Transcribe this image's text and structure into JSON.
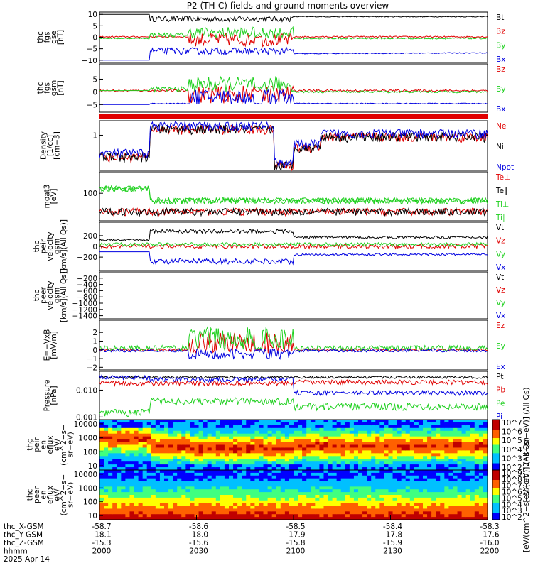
{
  "title": "P2 (TH-C) fields and ground moments overview",
  "date_label": "2025 Apr 14",
  "time_axis": {
    "row_labels": [
      "thc_X-GSM",
      "thc_Y-GSM",
      "thc_Z-GSM",
      "hhmm"
    ],
    "columns": [
      {
        "x": "-58.7",
        "y": "-18.1",
        "z": "-15.3",
        "hhmm": "2000"
      },
      {
        "x": "-58.6",
        "y": "-18.0",
        "z": "-15.6",
        "hhmm": "2030"
      },
      {
        "x": "-58.5",
        "y": "-17.9",
        "z": "-15.8",
        "hhmm": "2100"
      },
      {
        "x": "-58.4",
        "y": "-17.8",
        "z": "-15.9",
        "hhmm": "2130"
      },
      {
        "x": "-58.3",
        "y": "-17.6",
        "z": "-16.0",
        "hhmm": "2200"
      }
    ]
  },
  "colors": {
    "black": "#000000",
    "red": "#e00000",
    "green": "#20d020",
    "blue": "#0000e0"
  },
  "chart_data": [
    {
      "type": "line",
      "panel": "fgs_gse",
      "ylabel": [
        "thc",
        "fgs",
        "gse",
        "[nT]"
      ],
      "yticks": [
        {
          "v": 10,
          "t": "10"
        },
        {
          "v": 5,
          "t": "5"
        },
        {
          "v": 0,
          "t": "0"
        },
        {
          "v": -5,
          "t": "−5"
        },
        {
          "v": -10,
          "t": "−10"
        }
      ],
      "ylim": [
        -11,
        11
      ],
      "scale": "linear",
      "series": [
        {
          "name": "Bt",
          "color": "black"
        },
        {
          "name": "Bz",
          "color": "red"
        },
        {
          "name": "By",
          "color": "green"
        },
        {
          "name": "Bx",
          "color": "blue"
        }
      ]
    },
    {
      "type": "line",
      "panel": "fgs_gsm",
      "ylabel": [
        "thc",
        "fgs",
        "gsm",
        "[nT]"
      ],
      "yticks": [
        {
          "v": 5,
          "t": "5"
        },
        {
          "v": 0,
          "t": "0"
        },
        {
          "v": -5,
          "t": "−5"
        }
      ],
      "ylim": [
        -8,
        11
      ],
      "scale": "linear",
      "series": [
        {
          "name": "Bz",
          "color": "red"
        },
        {
          "name": "By",
          "color": "green"
        },
        {
          "name": "Bx",
          "color": "blue"
        }
      ]
    },
    {
      "type": "bar",
      "panel": "eclipse_bar",
      "color": "red"
    },
    {
      "type": "line",
      "panel": "density",
      "ylabel": [
        "Density",
        "[1/cc]",
        "[cm−3]"
      ],
      "yticks": [
        {
          "v": 1,
          "t": "1"
        }
      ],
      "ylim": [
        0.07,
        3
      ],
      "scale": "log",
      "series": [
        {
          "name": "Ne",
          "color": "red"
        },
        {
          "name": "Ni",
          "color": "black"
        },
        {
          "name": "Npot",
          "color": "blue"
        }
      ]
    },
    {
      "type": "line",
      "panel": "temperature",
      "ylabel": [
        "moat3",
        "[eV]"
      ],
      "yticks": [
        {
          "v": 100,
          "t": "100"
        }
      ],
      "ylim": [
        10,
        600
      ],
      "scale": "log",
      "series": [
        {
          "name": "Te⊥",
          "color": "red"
        },
        {
          "name": "Te∥",
          "color": "black"
        },
        {
          "name": "Ti⊥",
          "color": "green"
        },
        {
          "name": "Ti∥",
          "color": "green"
        }
      ]
    },
    {
      "type": "line",
      "panel": "peir_velocity",
      "ylabel": [
        "thc",
        "peir",
        "velocity",
        "gsm",
        "[km/s](All Qs)]"
      ],
      "yticks": [
        {
          "v": 200,
          "t": "200"
        },
        {
          "v": 0,
          "t": "0"
        },
        {
          "v": -200,
          "t": "−200"
        }
      ],
      "ylim": [
        -450,
        450
      ],
      "scale": "linear",
      "series": [
        {
          "name": "Vt",
          "color": "black"
        },
        {
          "name": "Vz",
          "color": "red"
        },
        {
          "name": "Vy",
          "color": "green"
        },
        {
          "name": "Vx",
          "color": "blue"
        }
      ]
    },
    {
      "type": "line",
      "panel": "peer_velocity",
      "ylabel": [
        "thc",
        "peer",
        "velocity",
        "gsm",
        "[km/s](All Qs)]"
      ],
      "yticks": [
        {
          "v": -200,
          "t": "−200"
        },
        {
          "v": -400,
          "t": "−400"
        },
        {
          "v": -600,
          "t": "−600"
        },
        {
          "v": -800,
          "t": "−800"
        },
        {
          "v": -1000,
          "t": "−1000"
        },
        {
          "v": -1200,
          "t": "−1200"
        },
        {
          "v": -1400,
          "t": "−1400"
        }
      ],
      "ylim": [
        -1500,
        0
      ],
      "scale": "linear",
      "series": [
        {
          "name": "Vt",
          "color": "black"
        },
        {
          "name": "Vz",
          "color": "red"
        },
        {
          "name": "Vy",
          "color": "green"
        },
        {
          "name": "Vx",
          "color": "blue"
        }
      ]
    },
    {
      "type": "line",
      "panel": "efield",
      "ylabel": [
        "E=−VxB",
        "[mV/m]"
      ],
      "yticks": [
        {
          "v": 2,
          "t": "2"
        },
        {
          "v": 1,
          "t": "1"
        },
        {
          "v": 0,
          "t": "0"
        },
        {
          "v": -1,
          "t": "−1"
        },
        {
          "v": -2,
          "t": "−2"
        }
      ],
      "ylim": [
        -2.3,
        3.4
      ],
      "scale": "linear",
      "series": [
        {
          "name": "Ez",
          "color": "red"
        },
        {
          "name": "Ey",
          "color": "green"
        },
        {
          "name": "Ex",
          "color": "blue"
        }
      ]
    },
    {
      "type": "line",
      "panel": "pressure",
      "ylabel": [
        "Pressure",
        "[nPa]"
      ],
      "yticks": [
        {
          "v": 0.01,
          "t": "0.010"
        },
        {
          "v": 0.001,
          "t": "0.001"
        }
      ],
      "ylim": [
        0.0008,
        0.05
      ],
      "scale": "log",
      "series": [
        {
          "name": "Pt",
          "color": "black"
        },
        {
          "name": "Pb",
          "color": "red"
        },
        {
          "name": "Pe",
          "color": "green"
        },
        {
          "name": "Pi",
          "color": "blue"
        }
      ]
    },
    {
      "type": "heatmap",
      "panel": "peir_spectrogram",
      "ylabel": [
        "thc",
        "peir",
        "en",
        "eflux",
        "eV/",
        "(cm^2−s−",
        "sr−eV)"
      ],
      "yticks": [
        {
          "v": 10000,
          "t": "10000"
        },
        {
          "v": 1000,
          "t": "1000"
        },
        {
          "v": 100,
          "t": "100"
        },
        {
          "v": 10,
          "t": "10"
        }
      ],
      "ylim": [
        5,
        20000
      ],
      "scale": "log",
      "colorbar": {
        "ticks": [
          "10^7",
          "10^6",
          "10^5",
          "10^4",
          "10^3",
          "10^2"
        ],
        "label": "[eV/(cm^2−s−sr−eV)] (All Qs)"
      }
    },
    {
      "type": "heatmap",
      "panel": "peer_spectrogram",
      "ylabel": [
        "thc",
        "peer",
        "en",
        "eflux",
        "eV/",
        "(cm^2−s−",
        "sr−eV)"
      ],
      "yticks": [
        {
          "v": 10000,
          "t": "10000"
        },
        {
          "v": 1000,
          "t": "1000"
        },
        {
          "v": 100,
          "t": "100"
        },
        {
          "v": 10,
          "t": "10"
        }
      ],
      "ylim": [
        5,
        20000
      ],
      "scale": "log",
      "colorbar": {
        "ticks": [
          "10^9",
          "10^8",
          "10^7",
          "10^6",
          "10^5",
          "10^4",
          "10^3",
          "10^2"
        ],
        "label": "[eV/(cm^2−s−sr−eV)] (All Qs)"
      }
    }
  ]
}
